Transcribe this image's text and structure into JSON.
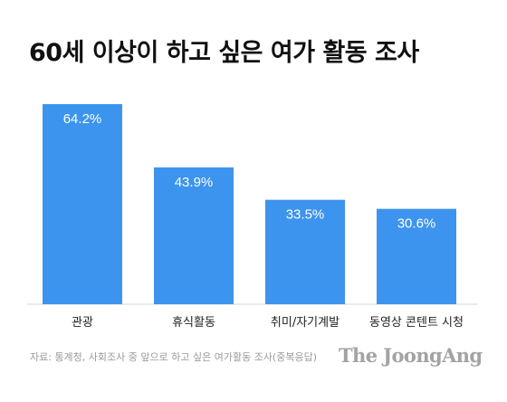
{
  "header": {
    "title": "60세 이상이 하고 싶은 여가 활동 조사"
  },
  "chart_data": {
    "type": "bar",
    "title": "60세 이상이 하고 싶은 여가 활동 조사",
    "categories": [
      "관광",
      "휴식활동",
      "취미/자기계발",
      "동영상 콘텐트 시청"
    ],
    "values": [
      64.2,
      43.9,
      33.5,
      30.6
    ],
    "value_labels": [
      "64.2%",
      "43.9%",
      "33.5%",
      "30.6%"
    ],
    "xlabel": "",
    "ylabel": "",
    "ylim": [
      0,
      64.2
    ],
    "grid": false,
    "legend": "none",
    "bar_color": "#3d94ee",
    "value_label_color": "#ffffff"
  },
  "footer": {
    "source": "자료: 통계청, 사회조사 중 앞으로 하고 싶은 여가활동 조사(중복응답)",
    "logo": "The JoongAng"
  }
}
